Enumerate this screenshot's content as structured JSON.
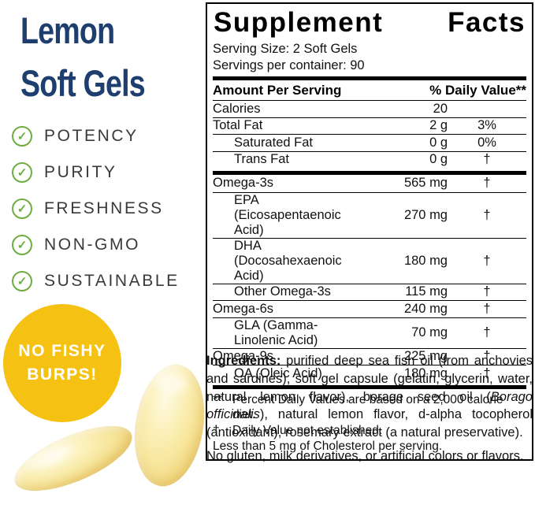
{
  "colors": {
    "brand_navy": "#1d3e6e",
    "check_green": "#6fad43",
    "badge_yellow": "#f5c113",
    "badge_text": "#ffffff",
    "label_black": "#000000",
    "softgel_yellow": "#f7e59b"
  },
  "left": {
    "title_line1": "Lemon",
    "title_line2": "Soft Gels",
    "features": [
      "POTENCY",
      "PURITY",
      "FRESHNESS",
      "NON-GMO",
      "SUSTAINABLE"
    ],
    "check_glyph": "✓",
    "badge": {
      "line1": "NO FISHY",
      "line2": "BURPS!"
    }
  },
  "facts": {
    "title": "Supplement Facts",
    "serving_size": "Serving Size: 2 Soft Gels",
    "servings_per_container": "Servings per container: 90",
    "col_amount": "Amount Per Serving",
    "col_dv": "% Daily Value**",
    "rows": [
      {
        "name": "Calories",
        "amount": "20",
        "dv": ""
      },
      {
        "name": "Total Fat",
        "amount": "2 g",
        "dv": "3%"
      },
      {
        "name": "Saturated Fat",
        "amount": "0 g",
        "dv": "0%"
      },
      {
        "name": "Trans Fat",
        "amount": "0 g",
        "dv": "†"
      },
      {
        "name": "Omega-3s",
        "amount": "565 mg",
        "dv": "†"
      },
      {
        "name": "EPA (Eicosapentaenoic Acid)",
        "amount": "270 mg",
        "dv": "†"
      },
      {
        "name": "DHA (Docosahexaenoic Acid)",
        "amount": "180 mg",
        "dv": "†"
      },
      {
        "name": "Other Omega-3s",
        "amount": "115 mg",
        "dv": "†"
      },
      {
        "name": "Omega-6s",
        "amount": "240 mg",
        "dv": "†"
      },
      {
        "name": "GLA (Gamma-Linolenic Acid)",
        "amount": "70 mg",
        "dv": "†"
      },
      {
        "name": "Omega-9s",
        "amount": "225 mg",
        "dv": "†"
      },
      {
        "name": "OA (Oleic Acid)",
        "amount": "180 mg",
        "dv": "†"
      }
    ],
    "footnotes": {
      "dv_marker": "**",
      "dv_note": "Percent Daily Values are based on a 2,000 calorie diet.",
      "dagger_marker": "†",
      "dagger_note": "Daily Value not established.",
      "cholesterol_note": "Less than 5 mg of Cholesterol per serving."
    }
  },
  "ingredients": {
    "label": "Ingredients:",
    "part1": " purified deep sea fish oil (from anchovies and sardines), soft gel capsule (gelatin, glycerin, water, natural lemon flavor), borage seed oil (",
    "italic": "Borago officinalis",
    "part2": "), natural lemon flavor, d-alpha tocopherol (antioxidant), rosemary extract (a natural preservative).",
    "allergen_note": "No gluten, milk derivatives, or artificial colors or flavors."
  }
}
